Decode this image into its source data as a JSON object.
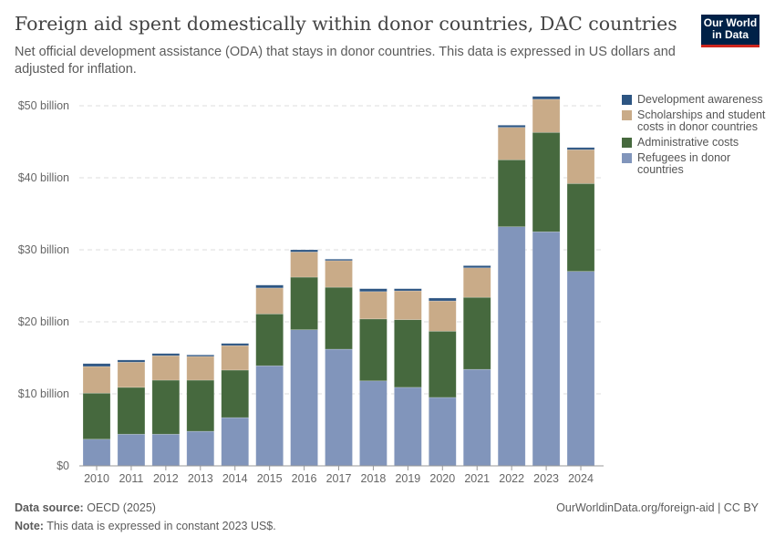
{
  "header": {
    "title": "Foreign aid spent domestically within donor countries, DAC countries",
    "subtitle": "Net official development assistance (ODA) that stays in donor countries. This data is expressed in US dollars and adjusted for inflation.",
    "logo": "Our World in Data"
  },
  "chart_data": {
    "type": "bar",
    "stacked": true,
    "categories": [
      "2010",
      "2011",
      "2012",
      "2013",
      "2014",
      "2015",
      "2016",
      "2017",
      "2018",
      "2019",
      "2020",
      "2021",
      "2022",
      "2023",
      "2024"
    ],
    "series": [
      {
        "name": "Refugees in donor countries",
        "color": "#8195bb",
        "values": [
          3.7,
          4.4,
          4.4,
          4.8,
          6.7,
          13.9,
          18.9,
          16.2,
          11.8,
          10.9,
          9.5,
          13.4,
          33.2,
          32.5,
          27.0
        ]
      },
      {
        "name": "Administrative costs",
        "color": "#46693e",
        "values": [
          6.4,
          6.5,
          7.5,
          7.1,
          6.6,
          7.2,
          7.3,
          8.6,
          8.6,
          9.4,
          9.2,
          10.0,
          9.3,
          13.8,
          12.2
        ]
      },
      {
        "name": "Scholarships and student costs in donor countries",
        "color": "#c9ab88",
        "values": [
          3.7,
          3.5,
          3.4,
          3.3,
          3.4,
          3.6,
          3.5,
          3.7,
          3.8,
          4.0,
          4.2,
          4.1,
          4.5,
          4.6,
          4.7
        ]
      },
      {
        "name": "Development awareness",
        "color": "#2d5582",
        "values": [
          0.4,
          0.3,
          0.3,
          0.2,
          0.3,
          0.4,
          0.3,
          0.2,
          0.4,
          0.3,
          0.4,
          0.3,
          0.3,
          0.4,
          0.3
        ]
      }
    ],
    "unit": "billion US$",
    "ylim": [
      0,
      50
    ],
    "yticks": [
      {
        "v": 0,
        "label": "$0"
      },
      {
        "v": 10,
        "label": "$10 billion"
      },
      {
        "v": 20,
        "label": "$20 billion"
      },
      {
        "v": 30,
        "label": "$30 billion"
      },
      {
        "v": 40,
        "label": "$40 billion"
      },
      {
        "v": 50,
        "label": "$50 billion"
      }
    ],
    "grid": true,
    "legend_position": "right",
    "legend_order": [
      "Development awareness",
      "Scholarships and student costs in donor countries",
      "Administrative costs",
      "Refugees in donor countries"
    ]
  },
  "footer": {
    "source_label": "Data source:",
    "source": "OECD (2025)",
    "url": "OurWorldinData.org/foreign-aid | CC BY",
    "note_label": "Note:",
    "note": "This data is expressed in constant 2023 US$."
  }
}
